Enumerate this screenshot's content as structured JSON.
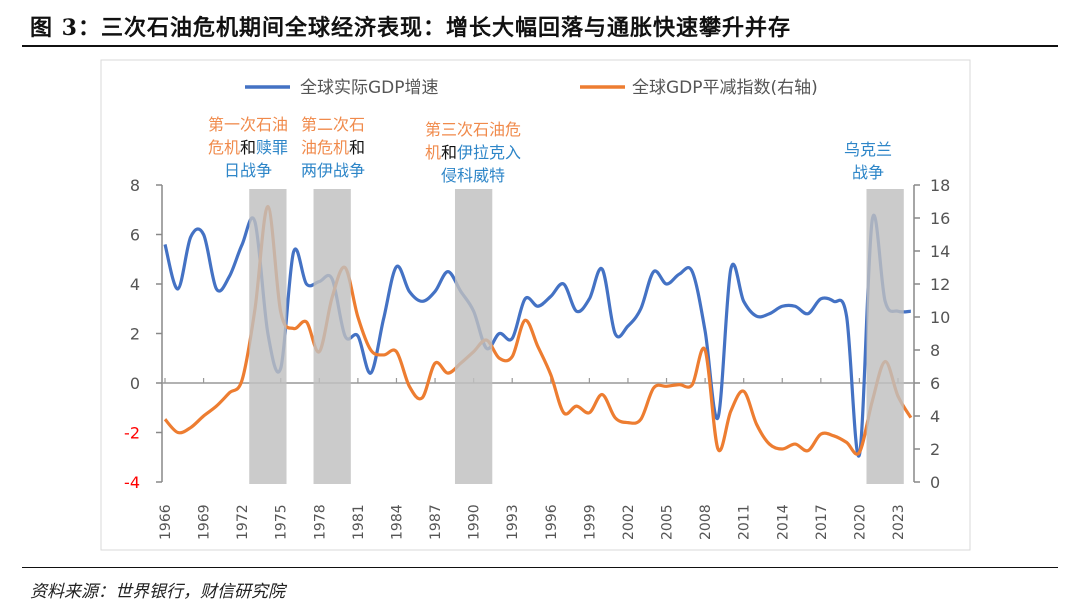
{
  "header": {
    "title": "图 3：三次石油危机期间全球经济表现：增长大幅回落与通胀快速攀升并存"
  },
  "footer": {
    "source": "资料来源：世界银行，财信研究院"
  },
  "chart_data": {
    "type": "line",
    "title": "",
    "x": [
      1966,
      1967,
      1968,
      1969,
      1970,
      1971,
      1972,
      1973,
      1974,
      1975,
      1976,
      1977,
      1978,
      1979,
      1980,
      1981,
      1982,
      1983,
      1984,
      1985,
      1986,
      1987,
      1988,
      1989,
      1990,
      1991,
      1992,
      1993,
      1994,
      1995,
      1996,
      1997,
      1998,
      1999,
      2000,
      2001,
      2002,
      2003,
      2004,
      2005,
      2006,
      2007,
      2008,
      2009,
      2010,
      2011,
      2012,
      2013,
      2014,
      2015,
      2016,
      2017,
      2018,
      2019,
      2020,
      2021,
      2022,
      2023,
      2024
    ],
    "xticks": [
      "1966",
      "1969",
      "1972",
      "1975",
      "1978",
      "1981",
      "1984",
      "1987",
      "1990",
      "1993",
      "1996",
      "1999",
      "2002",
      "2005",
      "2008",
      "2011",
      "2014",
      "2017",
      "2020",
      "2023"
    ],
    "series": [
      {
        "name": "全球实际GDP增速",
        "axis": "left",
        "color": "#4472C4",
        "values": [
          5.6,
          3.8,
          5.9,
          6.0,
          3.8,
          4.3,
          5.6,
          6.5,
          2.0,
          0.6,
          5.3,
          4.0,
          4.1,
          4.2,
          1.9,
          1.9,
          0.4,
          2.6,
          4.7,
          3.7,
          3.3,
          3.7,
          4.5,
          3.7,
          2.9,
          1.4,
          2.0,
          1.8,
          3.4,
          3.1,
          3.5,
          4.0,
          2.9,
          3.4,
          4.6,
          2.0,
          2.3,
          3.0,
          4.5,
          4.0,
          4.4,
          4.5,
          2.1,
          -1.4,
          4.6,
          3.3,
          2.7,
          2.8,
          3.1,
          3.1,
          2.8,
          3.4,
          3.3,
          2.7,
          -2.9,
          6.6,
          3.3,
          2.9,
          2.9
        ]
      },
      {
        "name": "全球GDP平减指数(右轴)",
        "axis": "right",
        "color": "#ED7D31",
        "values": [
          3.8,
          3.0,
          3.3,
          4.0,
          4.6,
          5.4,
          6.2,
          10.5,
          16.7,
          10.3,
          9.3,
          9.7,
          7.9,
          11.2,
          13.0,
          10.0,
          8.0,
          7.7,
          7.9,
          5.8,
          5.1,
          7.2,
          6.6,
          7.2,
          7.9,
          8.6,
          7.5,
          7.6,
          9.8,
          8.2,
          6.5,
          4.2,
          4.6,
          4.2,
          5.3,
          3.9,
          3.6,
          3.8,
          5.7,
          5.8,
          5.9,
          5.9,
          8.0,
          2.0,
          4.3,
          5.5,
          3.5,
          2.3,
          2.0,
          2.3,
          1.9,
          2.9,
          2.8,
          2.4,
          1.8,
          4.9,
          7.3,
          5.2,
          3.9
        ]
      }
    ],
    "left_axis": {
      "range": [
        -4,
        8
      ],
      "ticks": [
        "8",
        "6",
        "4",
        "2",
        "0",
        "-2",
        "-4"
      ],
      "negative_color": "#FF0000"
    },
    "right_axis": {
      "range": [
        0,
        18
      ],
      "ticks": [
        "18",
        "16",
        "14",
        "12",
        "10",
        "8",
        "6",
        "4",
        "2",
        "0"
      ]
    },
    "shaded_periods": [
      [
        1973,
        1974
      ],
      [
        1978,
        1979
      ],
      [
        1989,
        1990
      ],
      [
        2021,
        2022
      ]
    ],
    "legend": "top",
    "grid": false,
    "annotations": [
      {
        "lines": [
          [
            {
              "t": "第一次石油",
              "c": "orange"
            }
          ],
          [
            {
              "t": "危机",
              "c": "orange"
            },
            {
              "t": "和",
              "c": "black"
            },
            {
              "t": "赎罪",
              "c": "blue"
            }
          ],
          [
            {
              "t": "日战争",
              "c": "blue"
            }
          ]
        ]
      },
      {
        "lines": [
          [
            {
              "t": "第二次石",
              "c": "orange"
            }
          ],
          [
            {
              "t": "油危机",
              "c": "orange"
            },
            {
              "t": "和",
              "c": "black"
            }
          ],
          [
            {
              "t": "两伊战争",
              "c": "blue"
            }
          ]
        ]
      },
      {
        "lines": [
          [
            {
              "t": "第三次石油危",
              "c": "orange"
            }
          ],
          [
            {
              "t": "机",
              "c": "orange"
            },
            {
              "t": "和",
              "c": "black"
            },
            {
              "t": "伊拉克入",
              "c": "blue"
            }
          ],
          [
            {
              "t": "侵科威特",
              "c": "blue"
            }
          ]
        ]
      },
      {
        "lines": [
          [
            {
              "t": "乌克兰",
              "c": "blue"
            }
          ],
          [
            {
              "t": "战争",
              "c": "blue"
            }
          ]
        ]
      }
    ],
    "colors": {
      "orange": "#F08A4B",
      "blue": "#2E86C8",
      "black": "#111111",
      "shade": "#BFBFBF"
    }
  }
}
